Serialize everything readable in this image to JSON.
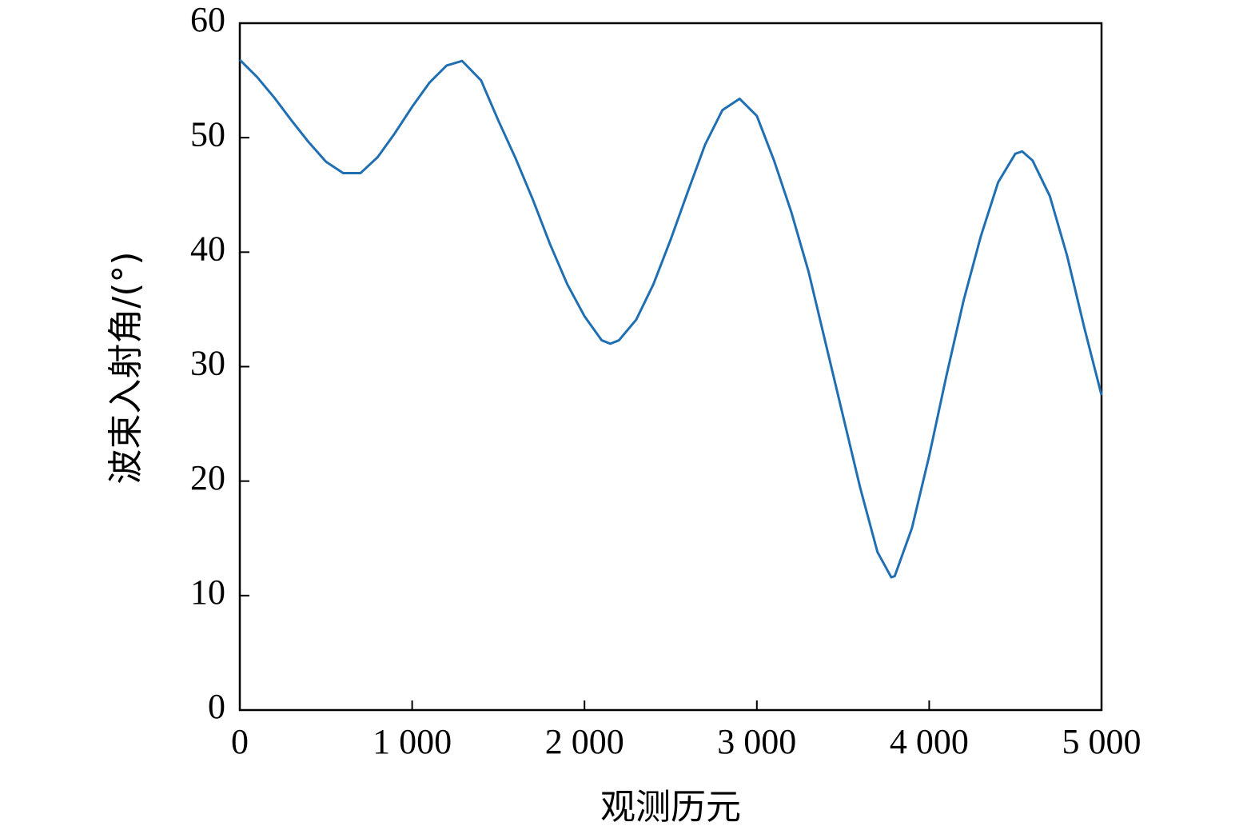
{
  "chart_data": {
    "type": "line",
    "x_label": "观测历元",
    "y_label": "波束入射角/(°)",
    "x": [
      0,
      100,
      200,
      300,
      400,
      500,
      600,
      700,
      800,
      900,
      1000,
      1100,
      1200,
      1290,
      1400,
      1500,
      1600,
      1700,
      1800,
      1900,
      2000,
      2100,
      2150,
      2200,
      2300,
      2400,
      2500,
      2600,
      2700,
      2800,
      2900,
      3000,
      3100,
      3200,
      3300,
      3400,
      3500,
      3600,
      3700,
      3780,
      3800,
      3900,
      4000,
      4100,
      4200,
      4300,
      4400,
      4500,
      4540,
      4600,
      4700,
      4800,
      4900,
      5000
    ],
    "series": [
      {
        "color": "#1f6fb2",
        "values": [
          56.8,
          55.3,
          53.5,
          51.5,
          49.6,
          47.9,
          46.9,
          46.9,
          48.3,
          50.4,
          52.7,
          54.8,
          56.3,
          56.7,
          55.0,
          51.5,
          48.2,
          44.6,
          40.7,
          37.2,
          34.4,
          32.3,
          32.0,
          32.3,
          34.1,
          37.2,
          41.1,
          45.3,
          49.4,
          52.4,
          53.4,
          51.9,
          48.0,
          43.5,
          38.3,
          32.0,
          25.7,
          19.4,
          13.8,
          11.6,
          11.7,
          15.9,
          22.2,
          29.2,
          35.8,
          41.4,
          46.1,
          48.6,
          48.8,
          48.0,
          44.9,
          39.7,
          33.4,
          27.5
        ]
      }
    ],
    "xlim": [
      0,
      5000
    ],
    "xticks": [
      0,
      {
        "value": 1000,
        "label": "1 000"
      },
      {
        "value": 2000,
        "label": "2 000"
      },
      {
        "value": 3000,
        "label": "3 000"
      },
      {
        "value": 4000,
        "label": "4 000"
      },
      {
        "value": 5000,
        "label": "5 000"
      }
    ],
    "ylim": [
      0,
      60
    ],
    "yticks": [
      0,
      10,
      20,
      30,
      40,
      50,
      60
    ]
  }
}
